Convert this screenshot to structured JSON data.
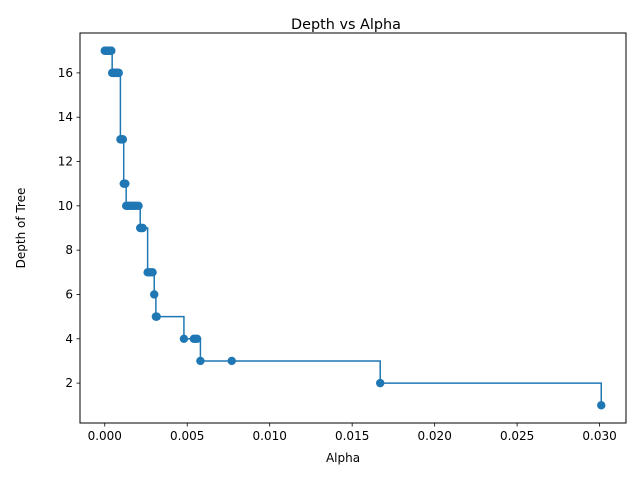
{
  "chart_data": {
    "type": "line",
    "title": "Depth vs Alpha",
    "xlabel": "Alpha",
    "ylabel": "Depth of Tree",
    "xlim": [
      -0.0015,
      0.0316
    ],
    "ylim": [
      0.2,
      17.8
    ],
    "xticks": [
      0.0,
      0.005,
      0.01,
      0.015,
      0.02,
      0.025,
      0.03
    ],
    "xtick_labels": [
      "0.000",
      "0.005",
      "0.010",
      "0.015",
      "0.020",
      "0.025",
      "0.030"
    ],
    "yticks": [
      2,
      4,
      6,
      8,
      10,
      12,
      14,
      16
    ],
    "ytick_labels": [
      "2",
      "4",
      "6",
      "8",
      "10",
      "12",
      "14",
      "16"
    ],
    "grid": false,
    "drawstyle": "steps-post",
    "marker": "o",
    "color": "#1f77b4",
    "series": [
      {
        "x": [
          0.0,
          5e-05,
          0.0001,
          0.00015,
          0.0002,
          0.00025,
          0.0003,
          0.00035,
          0.0004,
          0.00045,
          0.0005,
          0.00055,
          0.0006,
          0.00065,
          0.0007,
          0.00075,
          0.0008,
          0.00085,
          0.00095,
          0.001,
          0.00105,
          0.0011,
          0.00115,
          0.0012,
          0.00125,
          0.0013,
          0.0014,
          0.0015,
          0.0016,
          0.0017,
          0.0018,
          0.0019,
          0.00205,
          0.00215,
          0.00225,
          0.0023,
          0.0026,
          0.0027,
          0.0028,
          0.0029,
          0.003,
          0.0031,
          0.00315,
          0.0048,
          0.0054,
          0.0055,
          0.0056,
          0.0058,
          0.0077,
          0.0167,
          0.0301
        ],
        "y": [
          17,
          17,
          17,
          17,
          17,
          17,
          17,
          17,
          17,
          16,
          16,
          16,
          16,
          16,
          16,
          16,
          16,
          16,
          13,
          13,
          13,
          13,
          11,
          11,
          11,
          10,
          10,
          10,
          10,
          10,
          10,
          10,
          10,
          9,
          9,
          9,
          7,
          7,
          7,
          7,
          6,
          5,
          5,
          4,
          4,
          4,
          4,
          3,
          3,
          2,
          1
        ]
      }
    ]
  }
}
